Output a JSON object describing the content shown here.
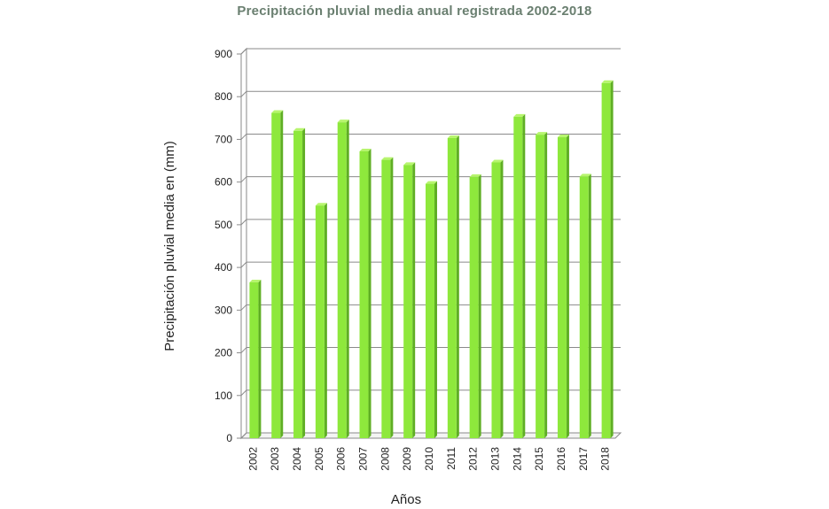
{
  "chart_data": {
    "type": "bar",
    "title": "Precipitación pluvial media anual registrada 2002-2018",
    "xlabel": "Años",
    "ylabel": "Precipitación pluvial media en (mm)",
    "categories": [
      "2002",
      "2003",
      "2004",
      "2005",
      "2006",
      "2007",
      "2008",
      "2009",
      "2010",
      "2011",
      "2012",
      "2013",
      "2014",
      "2015",
      "2016",
      "2017",
      "2018"
    ],
    "values": [
      365,
      762,
      720,
      545,
      740,
      672,
      652,
      640,
      596,
      703,
      612,
      646,
      753,
      711,
      705,
      613,
      832
    ],
    "ylim": [
      0,
      900
    ],
    "yticks": [
      "0",
      "100",
      "200",
      "300",
      "400",
      "500",
      "600",
      "700",
      "800",
      "900"
    ],
    "grid": true,
    "bar_color": "#8ee83c",
    "bar_side_color": "#5fae24",
    "bar_top_color": "#b7f56e"
  }
}
